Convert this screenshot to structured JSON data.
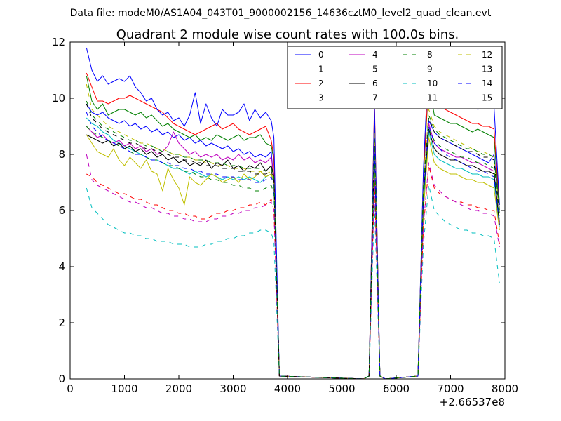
{
  "header": {
    "data_file": "Data file: modeM0/AS1A04_043T01_9000002156_14636cztM0_level2_quad_clean.evt"
  },
  "chart_data": {
    "type": "line",
    "title": "Quadrant 2 module wise count rates with 100.0s bins.",
    "xlabel": "",
    "ylabel": "",
    "xlim": [
      0,
      8000
    ],
    "ylim": [
      0,
      12
    ],
    "x_offset_label": "+2.66537e8",
    "x_ticks": [
      "0",
      "1000",
      "2000",
      "3000",
      "4000",
      "5000",
      "6000",
      "7000",
      "8000"
    ],
    "y_ticks": [
      "0",
      "2",
      "4",
      "6",
      "8",
      "10",
      "12"
    ],
    "grid": false,
    "legend_position": "top-right",
    "x_gaps": [
      [
        3850,
        5400
      ],
      [
        5800,
        6400
      ]
    ],
    "x": [
      300,
      400,
      500,
      600,
      700,
      800,
      900,
      1000,
      1100,
      1200,
      1300,
      1400,
      1500,
      1600,
      1700,
      1800,
      1900,
      2000,
      2100,
      2200,
      2300,
      2400,
      2500,
      2600,
      2700,
      2800,
      2900,
      3000,
      3100,
      3200,
      3300,
      3400,
      3500,
      3600,
      3700,
      3750,
      3850,
      5400,
      5500,
      5600,
      5700,
      5800,
      6400,
      6500,
      6600,
      6700,
      6800,
      6900,
      7000,
      7100,
      7200,
      7300,
      7400,
      7500,
      7600,
      7700,
      7800,
      7900
    ],
    "series": [
      {
        "name": "0",
        "color": "#0000ff",
        "style": "solid",
        "values": [
          9.8,
          9.5,
          9.4,
          9.5,
          9.3,
          9.2,
          9.1,
          9.2,
          9.0,
          9.1,
          8.9,
          9.0,
          8.8,
          8.9,
          8.7,
          8.8,
          8.6,
          8.7,
          8.5,
          8.6,
          8.4,
          8.5,
          8.3,
          8.4,
          8.3,
          8.2,
          8.3,
          8.1,
          8.2,
          8.0,
          8.1,
          7.9,
          8.0,
          7.9,
          8.1,
          7.0,
          0.1,
          0,
          0.1,
          9.3,
          0.1,
          0,
          0.1,
          6.5,
          9.2,
          8.8,
          8.6,
          8.5,
          8.4,
          8.3,
          8.2,
          8.1,
          8.0,
          7.9,
          7.8,
          7.7,
          8.0,
          6.0
        ]
      },
      {
        "name": "1",
        "color": "#008000",
        "style": "solid",
        "values": [
          10.8,
          9.9,
          9.6,
          9.8,
          9.4,
          9.5,
          9.6,
          9.6,
          9.5,
          9.4,
          9.5,
          9.3,
          9.4,
          9.2,
          9.0,
          9.1,
          8.9,
          8.8,
          8.7,
          8.6,
          8.7,
          8.5,
          8.6,
          8.5,
          8.7,
          8.6,
          8.5,
          8.6,
          8.7,
          8.5,
          8.6,
          8.6,
          8.7,
          8.4,
          8.3,
          7.8,
          0.1,
          0,
          0.1,
          9.6,
          0.1,
          0,
          0.1,
          7.2,
          10.6,
          9.4,
          9.3,
          9.2,
          9.1,
          9.1,
          9.0,
          8.9,
          8.8,
          8.9,
          8.8,
          8.7,
          8.6,
          6.0
        ]
      },
      {
        "name": "2",
        "color": "#ff0000",
        "style": "solid",
        "values": [
          10.9,
          10.4,
          9.9,
          9.9,
          9.8,
          9.9,
          10.0,
          10.0,
          10.1,
          10.0,
          9.9,
          9.8,
          9.7,
          9.6,
          9.5,
          9.3,
          9.1,
          9.0,
          8.9,
          8.8,
          8.7,
          8.8,
          8.9,
          9.0,
          9.1,
          8.9,
          9.0,
          9.1,
          8.9,
          8.8,
          8.7,
          8.8,
          8.9,
          9.0,
          8.5,
          7.9,
          0.1,
          0,
          0.1,
          9.9,
          0.1,
          0,
          0.1,
          7.3,
          10.7,
          9.8,
          9.7,
          9.6,
          9.5,
          9.4,
          9.3,
          9.2,
          9.1,
          9.1,
          9.0,
          9.0,
          8.9,
          6.2
        ]
      },
      {
        "name": "3",
        "color": "#00bfbf",
        "style": "solid",
        "values": [
          9.3,
          9.1,
          9.0,
          8.8,
          8.7,
          8.5,
          8.4,
          8.3,
          8.2,
          8.1,
          8.0,
          7.9,
          7.8,
          7.8,
          7.7,
          7.6,
          7.5,
          7.5,
          7.4,
          7.3,
          7.4,
          7.3,
          7.2,
          7.3,
          7.2,
          7.1,
          7.2,
          7.1,
          7.2,
          7.1,
          7.2,
          7.1,
          7.0,
          7.2,
          7.3,
          7.0,
          0.1,
          0,
          0.1,
          8.0,
          0.1,
          0,
          0.1,
          6.2,
          8.8,
          8.0,
          7.8,
          7.7,
          7.6,
          7.5,
          7.5,
          7.4,
          7.3,
          7.3,
          7.2,
          7.2,
          7.1,
          5.4
        ]
      },
      {
        "name": "4",
        "color": "#bf00bf",
        "style": "solid",
        "values": [
          9.0,
          8.8,
          8.6,
          8.7,
          8.5,
          8.4,
          8.5,
          8.3,
          8.4,
          8.2,
          8.3,
          8.1,
          8.2,
          8.0,
          8.1,
          8.3,
          8.8,
          8.4,
          8.2,
          8.0,
          8.1,
          7.9,
          8.0,
          7.9,
          8.0,
          7.8,
          7.9,
          7.8,
          8.0,
          7.8,
          7.9,
          7.7,
          7.8,
          7.7,
          7.9,
          7.2,
          0.1,
          0,
          0.1,
          8.4,
          0.1,
          0,
          0.1,
          6.6,
          9.1,
          8.4,
          8.2,
          8.1,
          8.0,
          7.9,
          7.9,
          7.8,
          7.7,
          7.7,
          7.6,
          7.5,
          7.4,
          5.6
        ]
      },
      {
        "name": "5",
        "color": "#bfbf00",
        "style": "solid",
        "values": [
          8.7,
          8.4,
          8.1,
          8.0,
          7.9,
          8.2,
          7.8,
          7.6,
          7.9,
          7.7,
          7.5,
          7.8,
          7.4,
          7.3,
          6.7,
          7.5,
          7.1,
          6.8,
          6.2,
          7.2,
          7.0,
          6.9,
          7.1,
          7.3,
          7.2,
          7.0,
          7.1,
          7.2,
          7.0,
          7.3,
          7.1,
          7.2,
          7.4,
          7.2,
          7.3,
          7.0,
          0.1,
          0,
          0.1,
          7.9,
          0.1,
          0,
          0.1,
          6.0,
          8.6,
          7.7,
          7.5,
          7.4,
          7.3,
          7.3,
          7.2,
          7.1,
          7.1,
          7.0,
          7.0,
          6.9,
          6.8,
          5.3
        ]
      },
      {
        "name": "6",
        "color": "#000000",
        "style": "solid",
        "values": [
          8.7,
          8.6,
          8.5,
          8.4,
          8.5,
          8.3,
          8.4,
          8.2,
          8.3,
          8.1,
          8.2,
          8.0,
          8.1,
          7.9,
          8.0,
          7.8,
          7.9,
          7.7,
          7.8,
          7.6,
          7.7,
          7.6,
          7.8,
          7.5,
          7.7,
          7.6,
          7.8,
          7.5,
          7.6,
          7.4,
          7.6,
          7.5,
          7.7,
          7.4,
          7.6,
          7.2,
          0.1,
          0,
          0.1,
          8.3,
          0.1,
          0,
          0.1,
          6.5,
          8.9,
          8.2,
          8.0,
          7.9,
          7.8,
          7.8,
          7.7,
          7.6,
          7.6,
          7.5,
          7.4,
          7.4,
          7.3,
          5.5
        ]
      },
      {
        "name": "7",
        "color": "#0000ff",
        "style": "solid",
        "values": [
          11.8,
          11.0,
          10.6,
          10.8,
          10.5,
          10.6,
          10.7,
          10.6,
          10.8,
          10.4,
          10.2,
          9.9,
          10.0,
          9.6,
          9.4,
          9.5,
          9.2,
          9.3,
          9.0,
          9.4,
          10.2,
          9.1,
          9.8,
          9.3,
          9.0,
          9.6,
          9.4,
          9.4,
          9.5,
          9.8,
          9.2,
          9.6,
          9.3,
          9.5,
          9.2,
          8.6,
          0.1,
          0,
          0.1,
          9.7,
          0.1,
          0,
          0.1,
          7.5,
          11.5,
          10.4,
          10.2,
          10.0,
          10.1,
          9.8,
          9.9,
          9.7,
          9.8,
          9.6,
          9.7,
          9.8,
          9.7,
          6.2
        ]
      },
      {
        "name": "8",
        "color": "#008000",
        "style": "dashed",
        "values": [
          9.0,
          8.8,
          8.7,
          8.6,
          8.5,
          8.4,
          8.3,
          8.2,
          8.1,
          8.0,
          8.0,
          7.9,
          7.8,
          7.8,
          7.7,
          7.6,
          7.6,
          7.5,
          7.4,
          7.4,
          7.3,
          7.2,
          7.2,
          7.1,
          7.1,
          7.0,
          7.0,
          6.9,
          6.9,
          6.8,
          6.8,
          6.7,
          6.7,
          6.8,
          6.9,
          6.6,
          0.1,
          0,
          0.1,
          8.1,
          0.1,
          0,
          0.1,
          6.5,
          8.9,
          8.5,
          8.3,
          8.2,
          8.1,
          8.0,
          7.9,
          7.9,
          7.8,
          7.7,
          7.7,
          7.6,
          7.5,
          5.6
        ]
      },
      {
        "name": "9",
        "color": "#ff0000",
        "style": "dashed",
        "values": [
          7.3,
          7.2,
          7.0,
          6.9,
          6.8,
          6.7,
          6.6,
          6.6,
          6.5,
          6.4,
          6.4,
          6.3,
          6.2,
          6.2,
          6.1,
          6.0,
          6.0,
          5.9,
          5.9,
          5.8,
          5.8,
          5.7,
          5.7,
          5.8,
          5.9,
          5.9,
          6.0,
          6.0,
          6.1,
          6.1,
          6.2,
          6.2,
          6.3,
          6.2,
          6.4,
          6.0,
          0.1,
          0,
          0.1,
          7.0,
          0.1,
          0,
          0.1,
          5.4,
          7.6,
          6.8,
          6.6,
          6.5,
          6.4,
          6.3,
          6.3,
          6.2,
          6.2,
          6.1,
          6.1,
          6.0,
          6.0,
          4.8
        ]
      },
      {
        "name": "10",
        "color": "#00bfbf",
        "style": "dashed",
        "values": [
          6.8,
          6.1,
          5.9,
          5.7,
          5.5,
          5.4,
          5.3,
          5.2,
          5.2,
          5.1,
          5.1,
          5.0,
          5.0,
          4.9,
          4.9,
          4.9,
          4.8,
          4.8,
          4.8,
          4.7,
          4.7,
          4.7,
          4.8,
          4.8,
          4.9,
          4.9,
          5.0,
          5.0,
          5.1,
          5.1,
          5.2,
          5.2,
          5.3,
          5.3,
          5.2,
          4.9,
          0.1,
          0,
          0.1,
          6.2,
          0.1,
          0,
          0.1,
          4.8,
          6.9,
          6.0,
          5.8,
          5.6,
          5.5,
          5.4,
          5.3,
          5.3,
          5.2,
          5.2,
          5.1,
          5.1,
          5.0,
          3.4
        ]
      },
      {
        "name": "11",
        "color": "#bf00bf",
        "style": "dashed",
        "values": [
          8.0,
          7.1,
          6.9,
          6.8,
          6.7,
          6.6,
          6.5,
          6.4,
          6.3,
          6.3,
          6.2,
          6.1,
          6.1,
          6.0,
          5.9,
          5.9,
          5.8,
          5.8,
          5.7,
          5.7,
          5.6,
          5.6,
          5.6,
          5.7,
          5.7,
          5.8,
          5.8,
          5.9,
          5.9,
          6.0,
          6.0,
          6.1,
          6.1,
          6.2,
          6.3,
          6.0,
          0.1,
          0,
          0.1,
          7.1,
          0.1,
          0,
          0.1,
          5.5,
          7.7,
          6.9,
          6.7,
          6.5,
          6.4,
          6.3,
          6.2,
          6.1,
          6.0,
          6.0,
          5.9,
          5.9,
          5.8,
          4.7
        ]
      },
      {
        "name": "12",
        "color": "#bfbf00",
        "style": "dashed",
        "values": [
          10.5,
          9.6,
          9.4,
          9.2,
          9.0,
          8.9,
          8.8,
          8.7,
          8.6,
          8.5,
          8.4,
          8.4,
          8.3,
          8.2,
          8.2,
          8.1,
          8.0,
          8.0,
          7.9,
          7.9,
          7.8,
          7.8,
          7.7,
          7.7,
          7.6,
          7.6,
          7.6,
          7.5,
          7.5,
          7.5,
          7.4,
          7.4,
          7.4,
          7.3,
          7.4,
          7.1,
          0.1,
          0,
          0.1,
          8.8,
          0.1,
          0,
          0.1,
          6.9,
          9.6,
          9.0,
          8.8,
          8.7,
          8.6,
          8.5,
          8.4,
          8.3,
          8.2,
          8.1,
          8.1,
          8.0,
          7.9,
          5.9
        ]
      },
      {
        "name": "13",
        "color": "#000000",
        "style": "dashed",
        "values": [
          9.8,
          9.3,
          9.1,
          8.9,
          8.8,
          8.7,
          8.6,
          8.5,
          8.4,
          8.4,
          8.3,
          8.2,
          8.2,
          8.1,
          8.0,
          8.0,
          7.9,
          7.9,
          7.8,
          7.8,
          7.7,
          7.7,
          7.6,
          7.6,
          7.6,
          7.5,
          7.5,
          7.5,
          7.4,
          7.4,
          7.4,
          7.3,
          7.3,
          7.3,
          7.4,
          7.1,
          0.1,
          0,
          0.1,
          8.5,
          0.1,
          0,
          0.1,
          6.8,
          9.3,
          8.8,
          8.6,
          8.5,
          8.4,
          8.3,
          8.2,
          8.1,
          8.1,
          8.0,
          7.9,
          7.9,
          7.8,
          5.8
        ]
      },
      {
        "name": "14",
        "color": "#0000ff",
        "style": "dashed",
        "values": [
          9.5,
          9.0,
          8.8,
          8.6,
          8.5,
          8.4,
          8.3,
          8.2,
          8.1,
          8.0,
          8.0,
          7.9,
          7.8,
          7.8,
          7.7,
          7.7,
          7.6,
          7.6,
          7.5,
          7.5,
          7.4,
          7.4,
          7.3,
          7.3,
          7.3,
          7.2,
          7.2,
          7.2,
          7.1,
          7.1,
          7.1,
          7.0,
          7.0,
          7.1,
          7.2,
          6.9,
          0.1,
          0,
          0.1,
          8.2,
          0.1,
          0,
          0.1,
          6.6,
          9.0,
          8.4,
          8.2,
          8.0,
          7.9,
          7.8,
          7.7,
          7.6,
          7.5,
          7.4,
          7.4,
          7.3,
          7.2,
          5.5
        ]
      },
      {
        "name": "15",
        "color": "#008000",
        "style": "dashed",
        "values": [
          9.9,
          9.4,
          9.2,
          9.0,
          8.9,
          8.8,
          8.7,
          8.6,
          8.5,
          8.5,
          8.4,
          8.3,
          8.3,
          8.2,
          8.1,
          8.1,
          8.0,
          8.0,
          7.9,
          7.9,
          7.8,
          7.8,
          7.8,
          7.7,
          7.7,
          7.7,
          7.6,
          7.6,
          7.6,
          7.5,
          7.5,
          7.5,
          7.5,
          7.4,
          7.5,
          7.2,
          0.1,
          0,
          0.1,
          8.6,
          0.1,
          0,
          0.1,
          6.9,
          9.4,
          8.9,
          8.7,
          8.6,
          8.5,
          8.4,
          8.3,
          8.2,
          8.2,
          8.1,
          8.0,
          8.0,
          7.9,
          5.9
        ]
      }
    ]
  }
}
